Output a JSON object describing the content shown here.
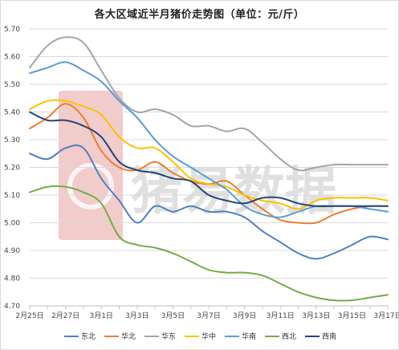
{
  "chart_data": {
    "type": "line",
    "title": "各大区域近半月猪价走势图（单位：元/斤）",
    "xlabel": "",
    "ylabel": "",
    "ylim": [
      4.7,
      5.7
    ],
    "yticks": [
      "4.70",
      "4.80",
      "4.90",
      "5.00",
      "5.10",
      "5.20",
      "5.30",
      "5.40",
      "5.50",
      "5.60",
      "5.70"
    ],
    "x": [
      "2月25日",
      "2月26日",
      "2月27日",
      "2月28日",
      "3月1日",
      "3月2日",
      "3月3日",
      "3月4日",
      "3月5日",
      "3月6日",
      "3月7日",
      "3月8日",
      "3月9日",
      "3月10日",
      "3月11日",
      "3月12日",
      "3月13日",
      "3月14日",
      "3月15日",
      "3月16日",
      "3月17日"
    ],
    "xtick_labels": [
      "2月25日",
      "2月27日",
      "3月1日",
      "3月3日",
      "3月5日",
      "3月7日",
      "3月9日",
      "3月11日",
      "3月13日",
      "3月15日",
      "3月17日"
    ],
    "grid": "horizontal",
    "legend_position": "bottom",
    "series": [
      {
        "name": "东北",
        "color": "#4f81bd",
        "values": [
          5.25,
          5.23,
          5.27,
          5.27,
          5.16,
          5.08,
          5.0,
          5.06,
          5.04,
          5.06,
          5.04,
          5.04,
          5.02,
          4.97,
          4.93,
          4.89,
          4.87,
          4.89,
          4.92,
          4.95,
          4.94
        ]
      },
      {
        "name": "华北",
        "color": "#ed7d31",
        "values": [
          5.34,
          5.38,
          5.43,
          5.38,
          5.26,
          5.2,
          5.19,
          5.22,
          5.18,
          5.15,
          5.14,
          5.15,
          5.1,
          5.05,
          5.01,
          5.0,
          5.0,
          5.03,
          5.05,
          5.06,
          5.06
        ]
      },
      {
        "name": "华东",
        "color": "#a5a5a5",
        "values": [
          5.56,
          5.64,
          5.67,
          5.65,
          5.55,
          5.45,
          5.4,
          5.41,
          5.39,
          5.35,
          5.35,
          5.33,
          5.34,
          5.29,
          5.23,
          5.19,
          5.2,
          5.21,
          5.21,
          5.21,
          5.21
        ]
      },
      {
        "name": "华中",
        "color": "#ffc000",
        "values": [
          5.41,
          5.44,
          5.44,
          5.42,
          5.39,
          5.31,
          5.27,
          5.27,
          5.22,
          5.16,
          5.14,
          5.13,
          5.1,
          5.08,
          5.07,
          5.05,
          5.08,
          5.09,
          5.09,
          5.09,
          5.08
        ]
      },
      {
        "name": "华南",
        "color": "#5b9bd5",
        "values": [
          5.54,
          5.56,
          5.58,
          5.55,
          5.51,
          5.44,
          5.38,
          5.3,
          5.24,
          5.2,
          5.16,
          5.12,
          5.06,
          5.03,
          5.02,
          5.04,
          5.06,
          5.06,
          5.06,
          5.05,
          5.04
        ]
      },
      {
        "name": "西北",
        "color": "#70ad47",
        "values": [
          5.11,
          5.13,
          5.13,
          5.11,
          5.07,
          4.95,
          4.92,
          4.91,
          4.89,
          4.86,
          4.83,
          4.82,
          4.82,
          4.81,
          4.78,
          4.75,
          4.73,
          4.72,
          4.72,
          4.73,
          4.74
        ]
      },
      {
        "name": "西南",
        "color": "#264478",
        "values": [
          5.4,
          5.37,
          5.37,
          5.35,
          5.31,
          5.22,
          5.19,
          5.18,
          5.16,
          5.15,
          5.1,
          5.08,
          5.07,
          5.09,
          5.09,
          5.07,
          5.06,
          5.06,
          5.06,
          5.06,
          5.06
        ]
      }
    ]
  },
  "watermark": {
    "text": "猪易数据",
    "logo_color": "#e8a0a0"
  }
}
